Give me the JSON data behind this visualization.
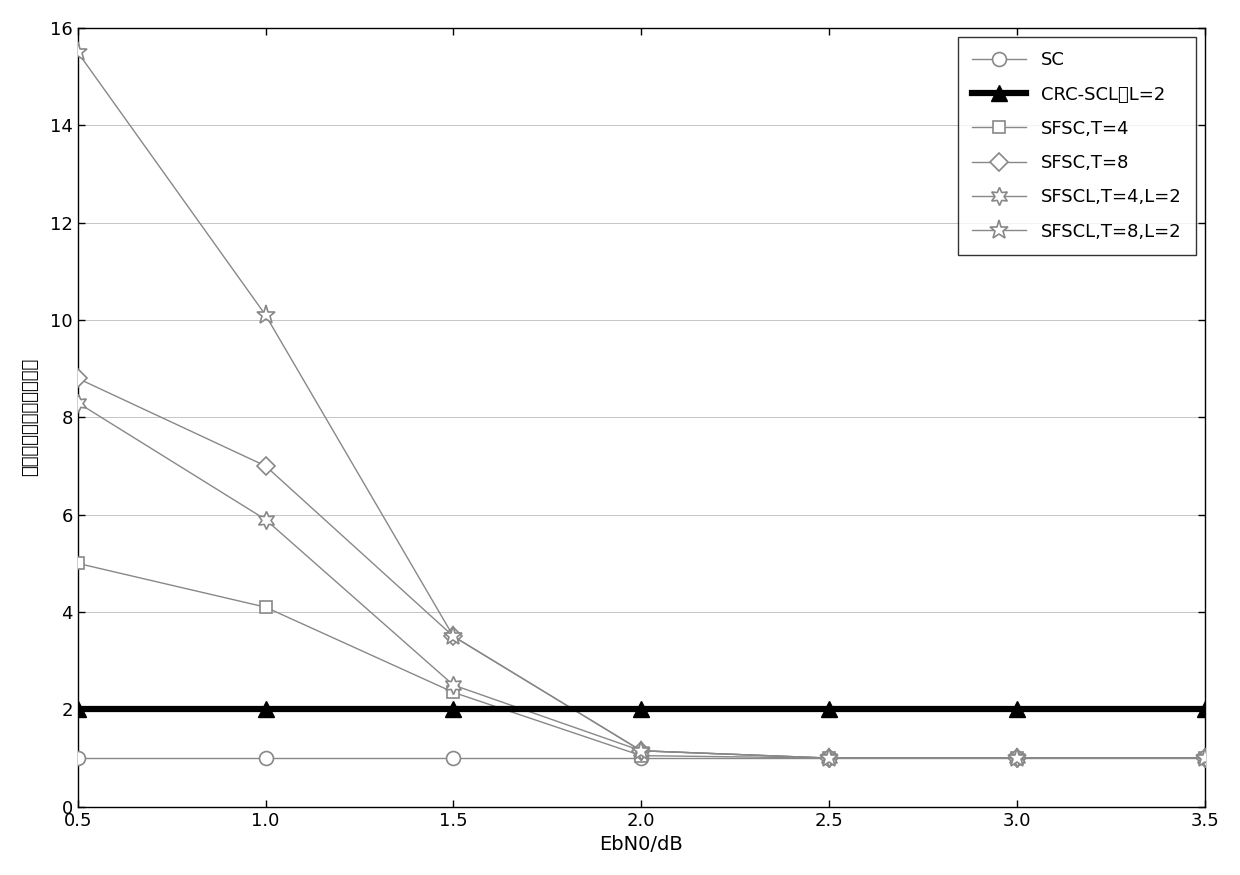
{
  "x": [
    0.5,
    1.0,
    1.5,
    2.0,
    2.5,
    3.0,
    3.5
  ],
  "SC": [
    1.0,
    1.0,
    1.0,
    1.0,
    1.0,
    1.0,
    1.0
  ],
  "CRC_SCL": [
    2.0,
    2.0,
    2.0,
    2.0,
    2.0,
    2.0,
    2.0
  ],
  "SFSC_T4": [
    5.0,
    4.1,
    2.35,
    1.05,
    1.0,
    1.0,
    1.0
  ],
  "SFSC_T8": [
    8.8,
    7.0,
    3.5,
    1.15,
    1.0,
    1.0,
    1.0
  ],
  "SFSCL_T4_L2": [
    8.3,
    5.9,
    2.5,
    1.15,
    1.0,
    1.0,
    1.0
  ],
  "SFSCL_T8_L2": [
    15.5,
    10.1,
    3.5,
    1.15,
    1.0,
    1.0,
    1.0
  ],
  "xlabel": "EbN0/dB",
  "ylabel": "归一化的平均译码复杂度",
  "xlim": [
    0.5,
    3.5
  ],
  "ylim": [
    0,
    16
  ],
  "xticks": [
    0.5,
    1.0,
    1.5,
    2.0,
    2.5,
    3.0,
    3.5
  ],
  "yticks": [
    0,
    2,
    4,
    6,
    8,
    10,
    12,
    14,
    16
  ],
  "color_gray": "#888888",
  "color_black": "#000000",
  "legend_SC": "SC",
  "legend_CRC": "CRC-SCL，L=2",
  "legend_SFSC_T4": "SFSC,T=4",
  "legend_SFSC_T8": "SFSC,T=8",
  "legend_SFSCL_T4": "SFSCL,T=4,L=2",
  "legend_SFSCL_T8": "SFSCL,T=8,L=2"
}
